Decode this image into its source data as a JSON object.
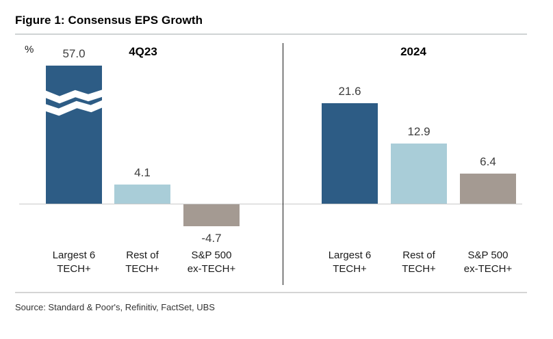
{
  "figure": {
    "title": "Figure 1: Consensus EPS Growth",
    "unit_label": "%",
    "source": "Source: Standard & Poor's, Refinitiv, FactSet, UBS"
  },
  "chart_data": {
    "type": "bar",
    "unit": "%",
    "baseline": 0,
    "grid": false,
    "legend": false,
    "value_labels": "one_decimal",
    "bar_colors": [
      "#2d5c85",
      "#a9cdd8",
      "#a49a92"
    ],
    "groups": [
      {
        "label": "4Q23",
        "categories": [
          [
            "Largest 6",
            "TECH+"
          ],
          [
            "Rest of",
            "TECH+"
          ],
          [
            "S&P 500",
            "ex-TECH+"
          ]
        ],
        "values": [
          57.0,
          4.1,
          -4.7
        ],
        "truncated_bars": [
          true,
          false,
          false
        ]
      },
      {
        "label": "2024",
        "categories": [
          [
            "Largest 6",
            "TECH+"
          ],
          [
            "Rest of",
            "TECH+"
          ],
          [
            "S&P 500",
            "ex-TECH+"
          ]
        ],
        "values": [
          21.6,
          12.9,
          6.4
        ],
        "truncated_bars": [
          false,
          false,
          false
        ]
      }
    ]
  },
  "colors": {
    "dark_blue": "#2d5c85",
    "light_blue": "#a9cdd8",
    "gray_bar": "#a49a92",
    "axis_line": "#c9c9c9",
    "rule_line": "#d0d3d4",
    "divider_line": "#141414",
    "value_text": "#3d3d3d",
    "break_mark": "#ffffff"
  }
}
